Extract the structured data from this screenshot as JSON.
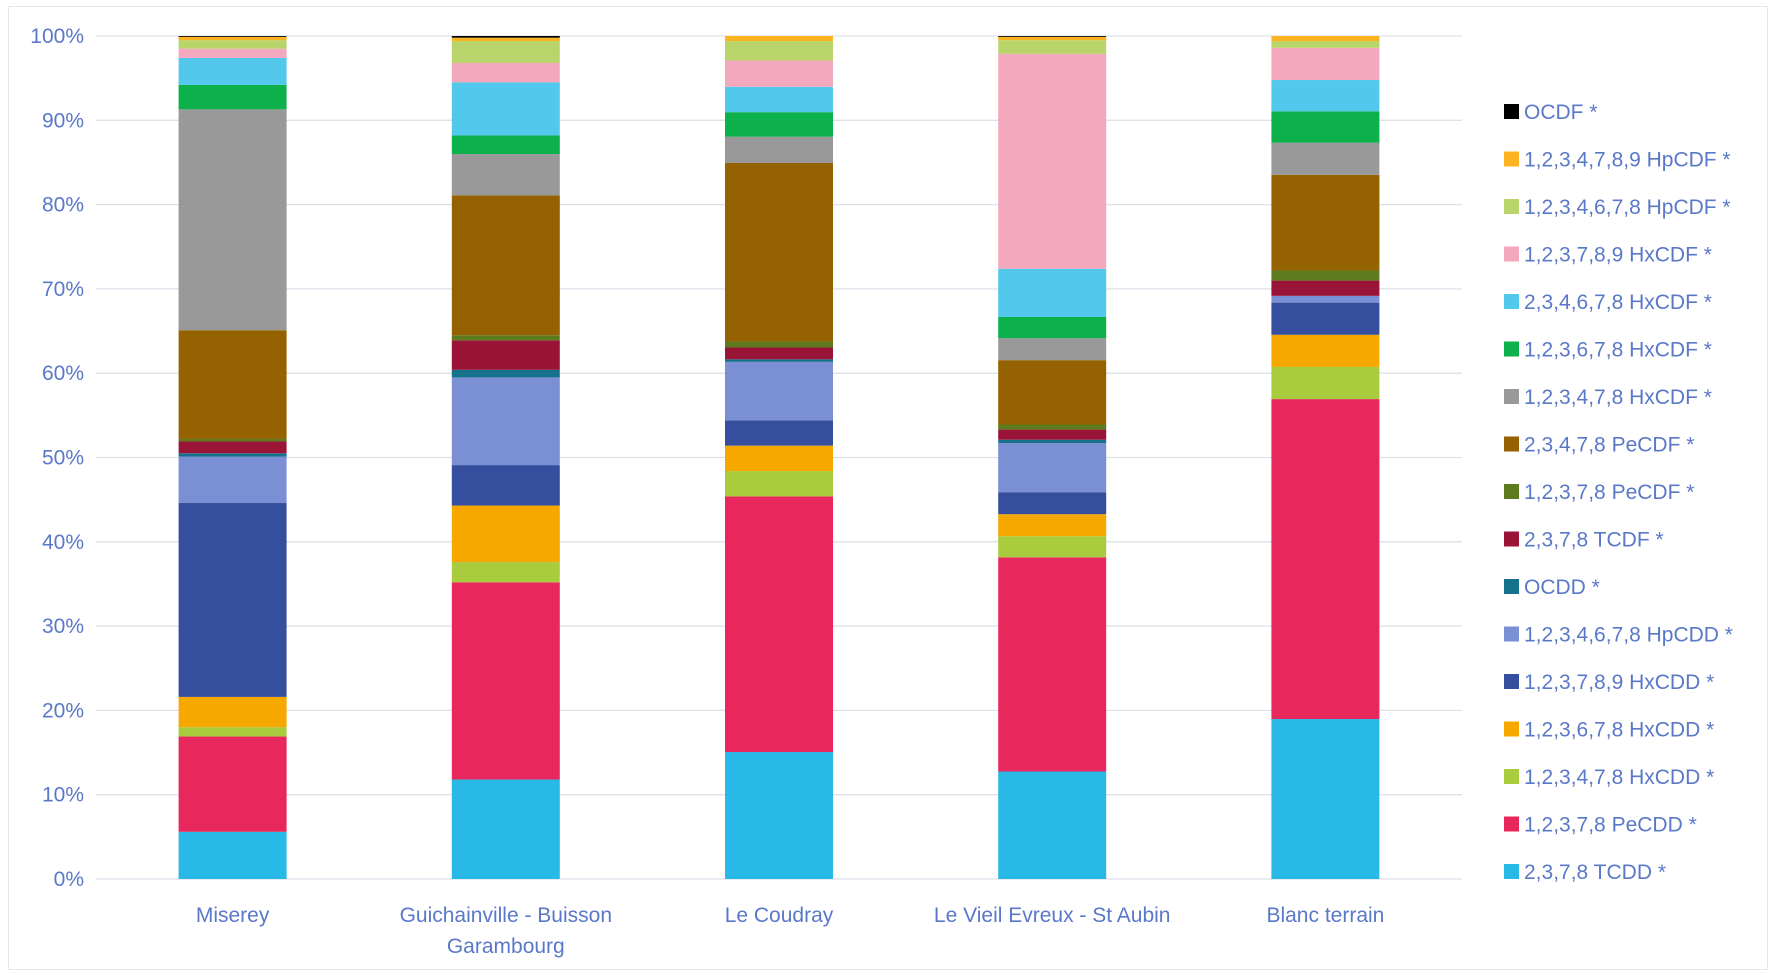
{
  "chart_data": {
    "type": "bar",
    "stacked": true,
    "percent": true,
    "ylim": [
      0,
      100
    ],
    "y_ticks": [
      "0%",
      "10%",
      "20%",
      "30%",
      "40%",
      "50%",
      "60%",
      "70%",
      "80%",
      "90%",
      "100%"
    ],
    "grid": true,
    "legend_position": "right",
    "categories": [
      [
        "Miserey"
      ],
      [
        "Guichainville - Buisson",
        "Garambourg"
      ],
      [
        "Le Coudray"
      ],
      [
        "Le Vieil Evreux - St Aubin"
      ],
      [
        "Blanc terrain"
      ]
    ],
    "series": [
      {
        "name": "2,3,7,8 TCDD *",
        "color": "#29b9e6",
        "values": [
          5.6,
          11.8,
          15.0,
          12.7,
          18.9
        ]
      },
      {
        "name": "1,2,3,7,8 PeCDD *",
        "color": "#e8285c",
        "values": [
          11.3,
          23.4,
          30.2,
          25.3,
          37.8
        ]
      },
      {
        "name": "1,2,3,4,7,8 HxCDD *",
        "color": "#a9cc3f",
        "values": [
          1.1,
          2.4,
          3.0,
          2.5,
          3.8
        ]
      },
      {
        "name": "1,2,3,6,7,8 HxCDD *",
        "color": "#f7a800",
        "values": [
          3.6,
          6.7,
          3.0,
          2.6,
          3.8
        ]
      },
      {
        "name": "1,2,3,7,8,9 HxCDD *",
        "color": "#354e9e",
        "values": [
          23.0,
          4.8,
          3.0,
          2.6,
          3.8
        ]
      },
      {
        "name": "1,2,3,4,6,7,8 HpCDD *",
        "color": "#7b8fd4",
        "values": [
          5.5,
          10.4,
          6.9,
          5.8,
          0.8
        ]
      },
      {
        "name": "OCDD *",
        "color": "#16728c",
        "values": [
          0.4,
          0.9,
          0.3,
          0.4,
          0.0
        ]
      },
      {
        "name": "2,3,7,8 TCDF *",
        "color": "#9a1438",
        "values": [
          1.4,
          3.5,
          1.4,
          1.2,
          1.8
        ]
      },
      {
        "name": "1,2,3,7,8 PeCDF *",
        "color": "#5d7a1e",
        "values": [
          0.3,
          0.6,
          0.7,
          0.6,
          1.2
        ]
      },
      {
        "name": "2,3,4,7,8 PeCDF *",
        "color": "#946200",
        "values": [
          12.9,
          16.6,
          21.1,
          7.6,
          11.3
        ]
      },
      {
        "name": "1,2,3,4,7,8 HxCDF *",
        "color": "#999999",
        "values": [
          26.2,
          4.9,
          3.1,
          2.6,
          3.8
        ]
      },
      {
        "name": "1,2,3,6,7,8 HxCDF *",
        "color": "#0db14b",
        "values": [
          2.9,
          2.2,
          2.9,
          2.5,
          3.7
        ]
      },
      {
        "name": "2,3,4,6,7,8 HxCDF *",
        "color": "#52c8ec",
        "values": [
          3.2,
          6.3,
          3.0,
          5.7,
          3.7
        ]
      },
      {
        "name": "1,2,3,7,8,9 HxCDF *",
        "color": "#f4a8be",
        "values": [
          1.1,
          2.3,
          3.1,
          25.4,
          3.8
        ]
      },
      {
        "name": "1,2,3,4,6,7,8 HpCDF *",
        "color": "#b8d46a",
        "values": [
          1.0,
          2.6,
          2.3,
          1.6,
          0.8
        ]
      },
      {
        "name": "1,2,3,4,7,8,9 HpCDF *",
        "color": "#fbb41f",
        "values": [
          0.4,
          0.4,
          0.6,
          0.4,
          0.6
        ]
      },
      {
        "name": "OCDF *",
        "color": "#000000",
        "values": [
          0.1,
          0.2,
          0.0,
          0.1,
          0.0
        ]
      }
    ],
    "colors": {
      "grid": "#dde1ea",
      "tick_text": "#5a78c8"
    }
  }
}
